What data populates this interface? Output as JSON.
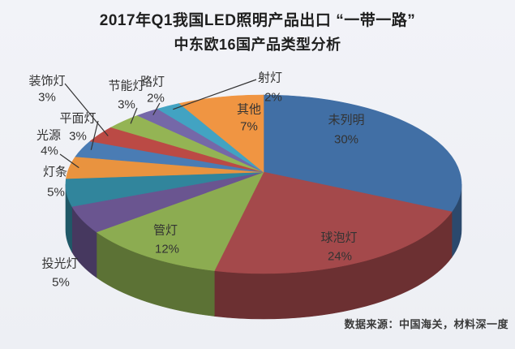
{
  "title": {
    "line1": "2017年Q1我国LED照明产品出口 “一带一路”",
    "line2": "中东欧16国产品类型分析"
  },
  "source": "数据来源：中国海关，材料深一度",
  "chart_data": {
    "type": "pie",
    "style": "3d",
    "start_angle": "12-o-clock",
    "direction": "clockwise",
    "unit": "%",
    "slices": [
      {
        "label": "未列明",
        "value": 30,
        "pct_text": "30%",
        "color": "#416FA5"
      },
      {
        "label": "球泡灯",
        "value": 24,
        "pct_text": "24%",
        "color": "#A4494B"
      },
      {
        "label": "管灯",
        "value": 12,
        "pct_text": "12%",
        "color": "#8CAC51"
      },
      {
        "label": "投光灯",
        "value": 5,
        "pct_text": "5%",
        "color": "#6A5590"
      },
      {
        "label": "灯条",
        "value": 5,
        "pct_text": "5%",
        "color": "#31859C"
      },
      {
        "label": "光源",
        "value": 4,
        "pct_text": "4%",
        "color": "#E9933F"
      },
      {
        "label": "平面灯",
        "value": 3,
        "pct_text": "3%",
        "color": "#4A7CB4"
      },
      {
        "label": "装饰灯",
        "value": 3,
        "pct_text": "3%",
        "color": "#BB4A45"
      },
      {
        "label": "节能灯",
        "value": 3,
        "pct_text": "3%",
        "color": "#94B454"
      },
      {
        "label": "路灯",
        "value": 2,
        "pct_text": "2%",
        "color": "#7568A8"
      },
      {
        "label": "射灯",
        "value": 2,
        "pct_text": "2%",
        "color": "#42A3C2"
      },
      {
        "label": "其他",
        "value": 7,
        "pct_text": "7%",
        "color": "#F09542"
      }
    ]
  }
}
